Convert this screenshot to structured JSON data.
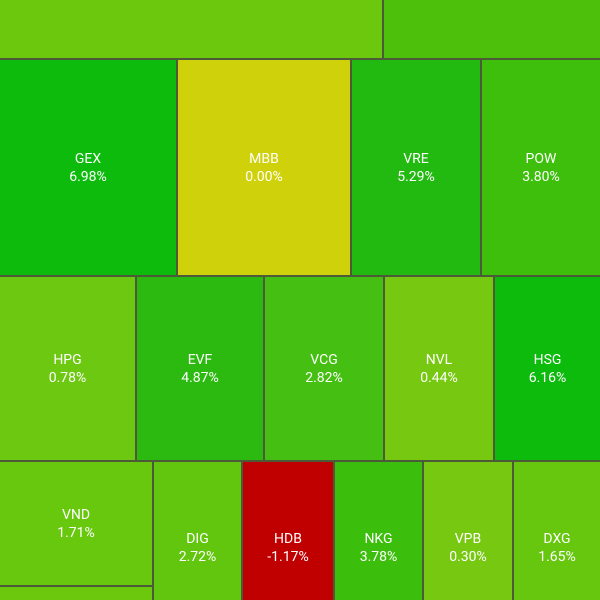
{
  "tiles": [
    {
      "ticker": "GEX",
      "change": "6.98%"
    },
    {
      "ticker": "MBB",
      "change": "0.00%"
    },
    {
      "ticker": "VRE",
      "change": "5.29%"
    },
    {
      "ticker": "POW",
      "change": "3.80%"
    },
    {
      "ticker": "HPG",
      "change": "0.78%"
    },
    {
      "ticker": "EVF",
      "change": "4.87%"
    },
    {
      "ticker": "VCG",
      "change": "2.82%"
    },
    {
      "ticker": "NVL",
      "change": "0.44%"
    },
    {
      "ticker": "HSG",
      "change": "6.16%"
    },
    {
      "ticker": "VND",
      "change": "1.71%"
    },
    {
      "ticker": "DIG",
      "change": "2.72%"
    },
    {
      "ticker": "HDB",
      "change": "-1.17%"
    },
    {
      "ticker": "NKG",
      "change": "3.78%"
    },
    {
      "ticker": "VPB",
      "change": "0.30%"
    },
    {
      "ticker": "DXG",
      "change": "1.65%"
    }
  ]
}
